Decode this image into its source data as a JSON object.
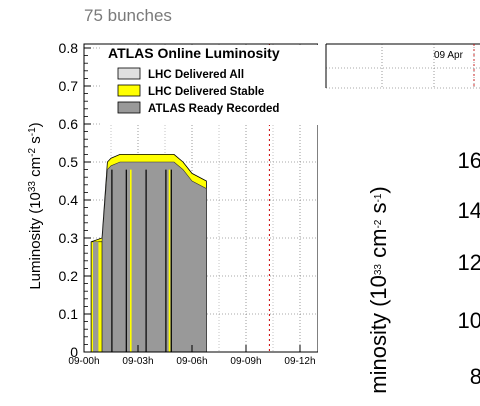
{
  "header": {
    "bunch_label": "75 bunches"
  },
  "chart_data": [
    {
      "type": "area",
      "title": "ATLAS Online Luminosity",
      "date_label": "09 Apr",
      "ylabel": "Luminosity (10^33 cm^-2 s^-1)",
      "ylabel_parts": {
        "main": "Luminosity (10",
        "exp1": "33",
        "mid": " cm",
        "exp2": "-2",
        "mid2": " s",
        "exp3": "-1",
        "end": ")"
      },
      "xlabel": "",
      "ylim": [
        0,
        0.8
      ],
      "xlim_hours": [
        0,
        13
      ],
      "yticks": [
        0,
        0.1,
        0.2,
        0.3,
        0.4,
        0.5,
        0.6,
        0.7,
        0.8
      ],
      "yticklabels": [
        "0",
        "0.1",
        "0.2",
        "0.3",
        "0.4",
        "0.5",
        "0.6",
        "0.7",
        "0.8"
      ],
      "xticks_hours": [
        0,
        3,
        6,
        9,
        12
      ],
      "xticklabels": [
        "09-00h",
        "09-03h",
        "09-06h",
        "09-09h",
        "09-12h"
      ],
      "dashed_marker_hour": 10.3,
      "grid": true,
      "legend_position": "top-left",
      "legend": [
        {
          "name": "LHC Delivered All",
          "color": "#e0e0e0"
        },
        {
          "name": "LHC Delivered Stable",
          "color": "#ffff00"
        },
        {
          "name": "ATLAS Ready Recorded",
          "color": "#999999"
        }
      ],
      "series": [
        {
          "name": "LHC Delivered Stable",
          "color": "#ffff00",
          "x_hours": [
            0.4,
            1.0,
            1.3,
            1.5,
            2.0,
            3.0,
            4.0,
            5.0,
            5.5,
            6.0,
            6.8
          ],
          "values": [
            0.29,
            0.3,
            0.5,
            0.51,
            0.52,
            0.52,
            0.52,
            0.52,
            0.5,
            0.47,
            0.45
          ]
        },
        {
          "name": "ATLAS Ready Recorded",
          "color": "#999999",
          "x_hours": [
            0.4,
            1.0,
            1.3,
            1.5,
            2.0,
            3.0,
            4.0,
            5.0,
            5.5,
            6.0,
            6.8
          ],
          "values": [
            0.29,
            0.29,
            0.48,
            0.49,
            0.5,
            0.5,
            0.5,
            0.5,
            0.48,
            0.45,
            0.43
          ]
        }
      ]
    },
    {
      "type": "line",
      "title": "",
      "ylabel_fragment": "minosity (10^33 cm^-2 s^-1)",
      "ylabel_parts": {
        "main": "minosity (10",
        "exp1": "33",
        "mid": " cm",
        "exp2": "-2",
        "mid2": " s",
        "exp3": "-1",
        "end": ")"
      },
      "yticklabels": [
        "16",
        "14",
        "12",
        "10",
        "8"
      ]
    }
  ]
}
